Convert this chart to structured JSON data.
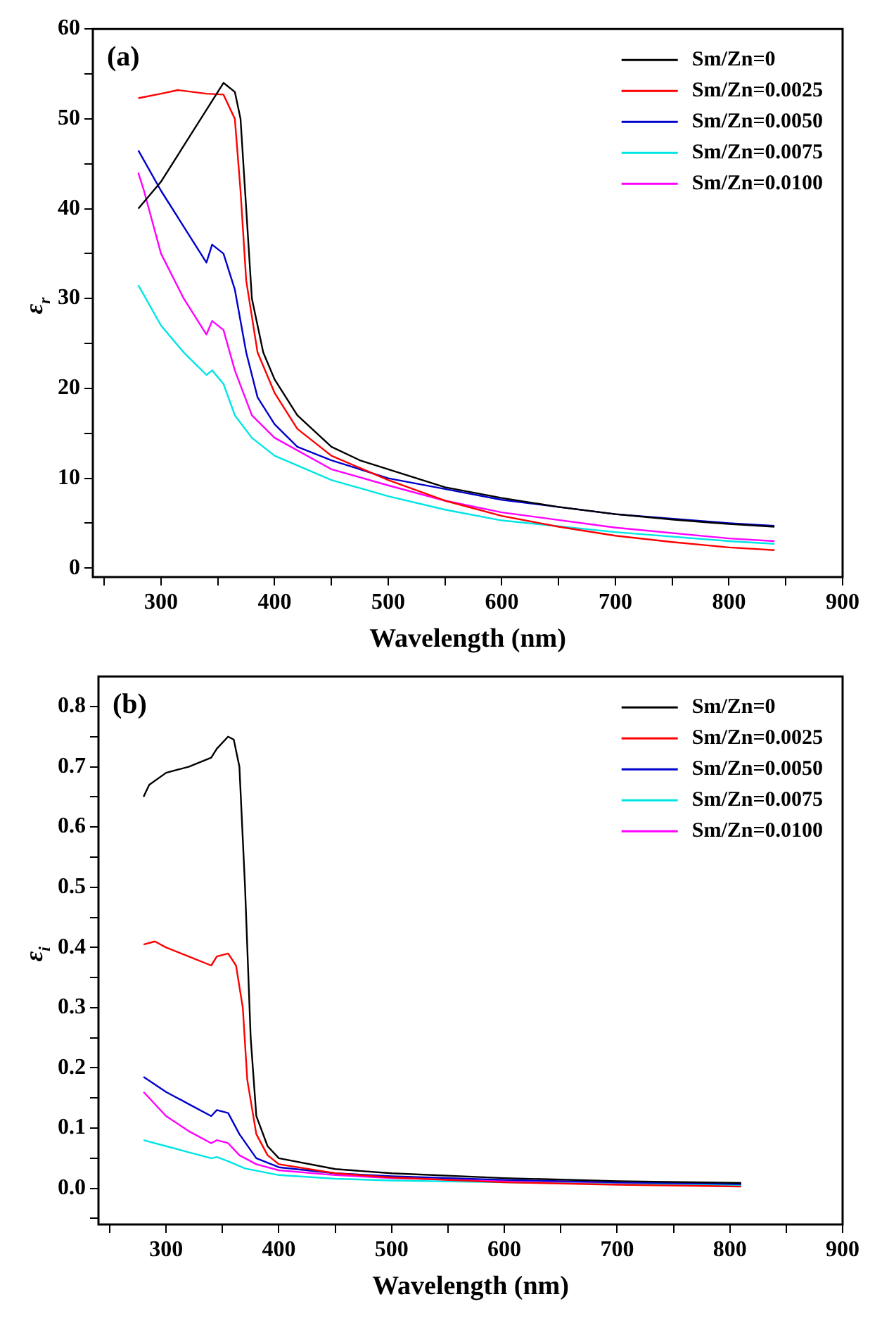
{
  "chart_data": [
    {
      "type": "line",
      "ylabel": "ε$_{r}$",
      "xlabel": "Wavelength (nm)",
      "annotations": [
        "(a)"
      ],
      "legend": "top right",
      "grid": false,
      "marker": "none",
      "line_style": "solid",
      "xlim": [
        240,
        900
      ],
      "xticks": [
        {
          "value": 250,
          "label": null
        },
        300,
        {
          "value": 350,
          "label": null
        },
        400,
        {
          "value": 450,
          "label": null
        },
        500,
        {
          "value": 550,
          "label": null
        },
        600,
        {
          "value": 650,
          "label": null
        },
        700,
        {
          "value": 750,
          "label": null
        },
        800,
        {
          "value": 850,
          "label": null
        },
        900
      ],
      "ylim": [
        -1,
        60
      ],
      "yticks": [
        0,
        {
          "value": 5,
          "label": null
        },
        10,
        {
          "value": 15,
          "label": null
        },
        20,
        {
          "value": 25,
          "label": null
        },
        30,
        {
          "value": 35,
          "label": null
        },
        40,
        {
          "value": 45,
          "label": null
        },
        50,
        {
          "value": 55,
          "label": null
        },
        60
      ],
      "series": [
        {
          "name": "Sm/Zn=0",
          "color": "#000000",
          "x": [
            280,
            300,
            320,
            340,
            355,
            365,
            370,
            375,
            380,
            390,
            400,
            420,
            450,
            475,
            500,
            550,
            600,
            650,
            700,
            750,
            800,
            840
          ],
          "values": [
            40,
            43,
            47,
            51,
            54,
            53,
            50,
            40,
            30,
            24,
            21,
            17,
            13.5,
            12,
            11,
            9,
            7.8,
            6.8,
            6,
            5.4,
            4.9,
            4.6
          ]
        },
        {
          "name": "Sm/Zn=0.0025",
          "color": "#ff0000",
          "x": [
            280,
            300,
            315,
            340,
            355,
            365,
            370,
            375,
            385,
            400,
            420,
            450,
            500,
            550,
            600,
            650,
            700,
            750,
            800,
            840
          ],
          "values": [
            52.3,
            52.8,
            53.2,
            52.8,
            52.7,
            50,
            42,
            32,
            24,
            19.5,
            15.5,
            12.5,
            9.8,
            7.5,
            5.8,
            4.6,
            3.6,
            2.9,
            2.3,
            2
          ]
        },
        {
          "name": "Sm/Zn=0.0050",
          "color": "#0000cc",
          "x": [
            280,
            300,
            320,
            340,
            345,
            355,
            365,
            375,
            385,
            400,
            420,
            450,
            500,
            550,
            600,
            700,
            800,
            840
          ],
          "values": [
            46.5,
            42,
            38,
            34,
            36,
            35,
            31,
            24,
            19,
            16,
            13.5,
            12,
            10,
            8.8,
            7.6,
            6,
            5,
            4.7
          ]
        },
        {
          "name": "Sm/Zn=0.0075",
          "color": "#00e5e5",
          "x": [
            280,
            300,
            320,
            340,
            345,
            355,
            365,
            380,
            400,
            450,
            500,
            550,
            600,
            700,
            800,
            840
          ],
          "values": [
            31.5,
            27,
            24,
            21.5,
            22,
            20.5,
            17,
            14.5,
            12.5,
            9.8,
            8,
            6.5,
            5.3,
            4,
            3,
            2.7
          ]
        },
        {
          "name": "Sm/Zn=0.0100",
          "color": "#ff00ff",
          "x": [
            280,
            285,
            300,
            320,
            340,
            345,
            355,
            365,
            380,
            400,
            450,
            500,
            550,
            600,
            700,
            800,
            840
          ],
          "values": [
            44,
            42,
            35,
            30,
            26,
            27.5,
            26.5,
            22,
            17,
            14.5,
            11,
            9.2,
            7.5,
            6.2,
            4.5,
            3.3,
            3
          ]
        }
      ]
    },
    {
      "type": "line",
      "ylabel": "ε$_{i}$",
      "xlabel": "Wavelength (nm)",
      "annotations": [
        "(b)"
      ],
      "legend": "top right",
      "grid": false,
      "marker": "none",
      "line_style": "solid",
      "xlim": [
        240,
        900
      ],
      "xticks": [
        {
          "value": 250,
          "label": null
        },
        300,
        {
          "value": 350,
          "label": null
        },
        400,
        {
          "value": 450,
          "label": null
        },
        500,
        {
          "value": 550,
          "label": null
        },
        600,
        {
          "value": 650,
          "label": null
        },
        700,
        {
          "value": 750,
          "label": null
        },
        800,
        {
          "value": 850,
          "label": null
        },
        900
      ],
      "ylim": [
        -0.06,
        0.85
      ],
      "yticks": [
        {
          "value": -0.05,
          "label": null
        },
        {
          "value": 0,
          "label": "0.0"
        },
        {
          "value": 0.05,
          "label": null
        },
        0.1,
        {
          "value": 0.15,
          "label": null
        },
        0.2,
        {
          "value": 0.25,
          "label": null
        },
        0.3,
        {
          "value": 0.35,
          "label": null
        },
        0.4,
        {
          "value": 0.45,
          "label": null
        },
        0.5,
        {
          "value": 0.55,
          "label": null
        },
        0.6,
        {
          "value": 0.65,
          "label": null
        },
        0.7,
        {
          "value": 0.75,
          "label": null
        },
        0.8
      ],
      "series": [
        {
          "name": "Sm/Zn=0",
          "color": "#000000",
          "x": [
            280,
            285,
            300,
            320,
            340,
            345,
            355,
            360,
            365,
            370,
            375,
            380,
            390,
            400,
            450,
            500,
            600,
            700,
            810
          ],
          "values": [
            0.65,
            0.67,
            0.69,
            0.7,
            0.715,
            0.73,
            0.75,
            0.745,
            0.7,
            0.5,
            0.25,
            0.12,
            0.07,
            0.05,
            0.032,
            0.025,
            0.017,
            0.012,
            0.009
          ]
        },
        {
          "name": "Sm/Zn=0.0025",
          "color": "#ff0000",
          "x": [
            280,
            290,
            300,
            320,
            340,
            345,
            355,
            362,
            368,
            372,
            380,
            390,
            400,
            450,
            500,
            600,
            700,
            810
          ],
          "values": [
            0.405,
            0.41,
            0.4,
            0.385,
            0.37,
            0.385,
            0.39,
            0.37,
            0.3,
            0.18,
            0.09,
            0.055,
            0.04,
            0.025,
            0.018,
            0.01,
            0.006,
            0.003
          ]
        },
        {
          "name": "Sm/Zn=0.0050",
          "color": "#0000cc",
          "x": [
            280,
            300,
            320,
            340,
            345,
            355,
            365,
            380,
            400,
            450,
            500,
            600,
            700,
            810
          ],
          "values": [
            0.185,
            0.16,
            0.14,
            0.12,
            0.13,
            0.125,
            0.09,
            0.05,
            0.035,
            0.025,
            0.02,
            0.014,
            0.01,
            0.007
          ]
        },
        {
          "name": "Sm/Zn=0.0075",
          "color": "#00e5e5",
          "x": [
            280,
            300,
            320,
            340,
            345,
            355,
            370,
            400,
            450,
            500,
            600,
            700,
            810
          ],
          "values": [
            0.08,
            0.07,
            0.06,
            0.05,
            0.052,
            0.045,
            0.033,
            0.022,
            0.016,
            0.013,
            0.01,
            0.007,
            0.005
          ]
        },
        {
          "name": "Sm/Zn=0.0100",
          "color": "#ff00ff",
          "x": [
            280,
            285,
            300,
            320,
            340,
            345,
            355,
            365,
            380,
            400,
            450,
            500,
            600,
            700,
            810
          ],
          "values": [
            0.16,
            0.15,
            0.12,
            0.095,
            0.075,
            0.08,
            0.075,
            0.055,
            0.04,
            0.03,
            0.022,
            0.017,
            0.012,
            0.008,
            0.006
          ]
        }
      ]
    }
  ]
}
